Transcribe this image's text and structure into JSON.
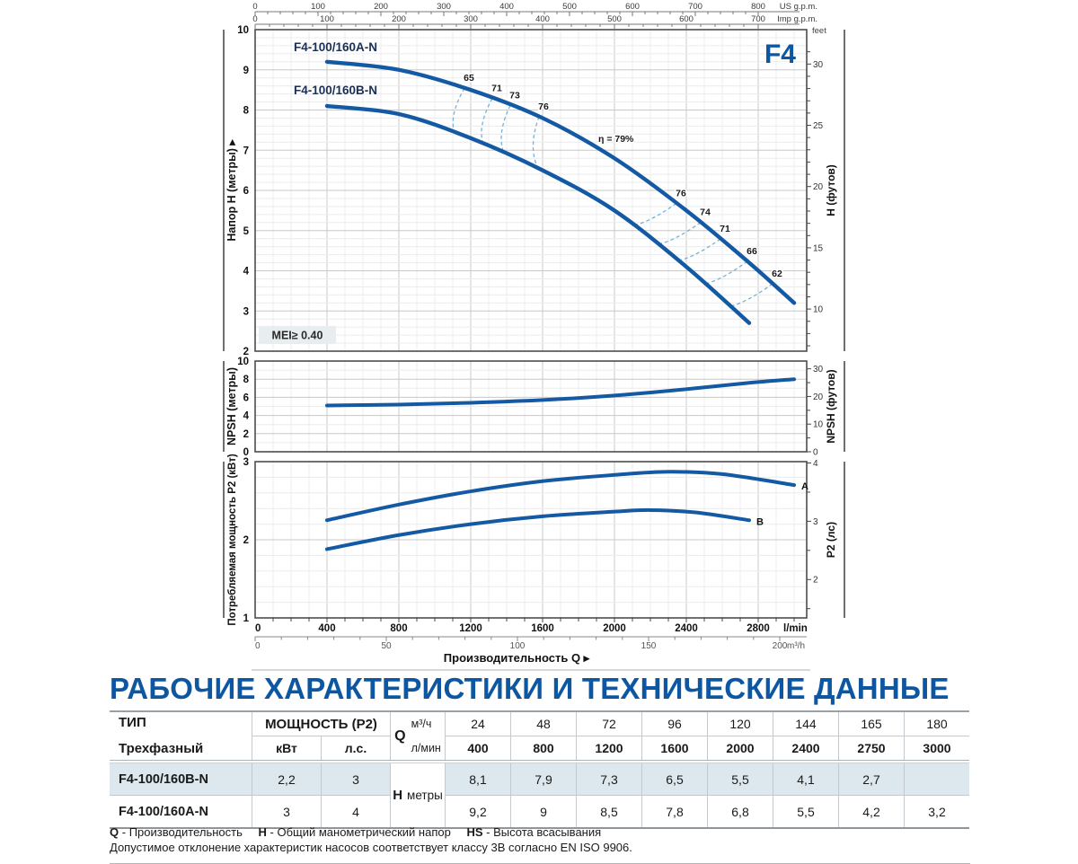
{
  "figure": {
    "brand": "F4",
    "mei": "MEI≥ 0.40",
    "x_title": "Производительность Q ▸",
    "curve_color": "#1459a3",
    "accent_blue": "#0d57a2",
    "iso_color": "#74b2d9"
  },
  "rulers": {
    "us": {
      "label": "US g.p.m.",
      "ticks": [
        0,
        100,
        200,
        300,
        400,
        500,
        600,
        700,
        800
      ]
    },
    "imp": {
      "label": "Imp g.p.m.",
      "ticks": [
        0,
        100,
        200,
        300,
        400,
        500,
        600,
        700
      ]
    },
    "feet_caption": "feet",
    "lmin": {
      "label": "l/min",
      "ticks": [
        0,
        400,
        800,
        1200,
        1600,
        2000,
        2400,
        2800
      ]
    },
    "m3h": {
      "label": "m³/h",
      "ticks": [
        0,
        50,
        100,
        150,
        200
      ]
    }
  },
  "chart_data": [
    {
      "type": "line",
      "name": "head-flow",
      "ylabel_left": "Напор H (метры) ▸",
      "ylabel_right": "H (футов)",
      "ylim": [
        2,
        10
      ],
      "xlim_lmin": [
        0,
        3070
      ],
      "yticks_left": [
        2,
        3,
        4,
        5,
        6,
        7,
        8,
        9,
        10
      ],
      "yticks_right_ft": [
        10,
        15,
        20,
        25,
        30
      ],
      "series": [
        {
          "name": "F4-100/160A-N",
          "points": [
            [
              400,
              9.2
            ],
            [
              800,
              9.0
            ],
            [
              1200,
              8.5
            ],
            [
              1600,
              7.8
            ],
            [
              2000,
              6.8
            ],
            [
              2400,
              5.5
            ],
            [
              2750,
              4.2
            ],
            [
              3000,
              3.2
            ]
          ]
        },
        {
          "name": "F4-100/160B-N",
          "points": [
            [
              400,
              8.1
            ],
            [
              800,
              7.9
            ],
            [
              1200,
              7.3
            ],
            [
              1600,
              6.5
            ],
            [
              2000,
              5.5
            ],
            [
              2400,
              4.1
            ],
            [
              2750,
              2.7
            ]
          ]
        }
      ],
      "efficiency": {
        "bep_label": "η = 79%",
        "bep_q": 1880,
        "points": [
          {
            "label": "65",
            "qa": 1165,
            "qb": 1110
          },
          {
            "label": "71",
            "qa": 1320,
            "qb": 1270
          },
          {
            "label": "73",
            "qa": 1420,
            "qb": 1385
          },
          {
            "label": "76",
            "qa": 1580,
            "qb": 1575
          },
          {
            "label": "76",
            "qa": 2345,
            "qb": 2105
          },
          {
            "label": "74",
            "qa": 2480,
            "qb": 2240
          },
          {
            "label": "71",
            "qa": 2590,
            "qb": 2355
          },
          {
            "label": "66",
            "qa": 2740,
            "qb": 2505
          },
          {
            "label": "62",
            "qa": 2880,
            "qb": 2645
          }
        ]
      }
    },
    {
      "type": "line",
      "name": "npsh",
      "ylabel_left": "NPSH (метры)",
      "ylabel_right": "NPSH (футов)",
      "ylim": [
        0,
        10
      ],
      "yticks_left": [
        0,
        2,
        4,
        6,
        8,
        10
      ],
      "yticks_right_ft": [
        0,
        10,
        20,
        30
      ],
      "series": [
        {
          "name": "NPSH",
          "points": [
            [
              400,
              5.1
            ],
            [
              800,
              5.2
            ],
            [
              1200,
              5.4
            ],
            [
              1600,
              5.7
            ],
            [
              2000,
              6.2
            ],
            [
              2400,
              6.9
            ],
            [
              2750,
              7.6
            ],
            [
              3000,
              8.0
            ]
          ]
        }
      ]
    },
    {
      "type": "line",
      "name": "p2-power",
      "ylabel_left": "Потребляемая мощность P2 (кВт)",
      "ylabel_right": "P2 (лс)",
      "ylim": [
        1,
        3
      ],
      "yticks_left": [
        1,
        2,
        3
      ],
      "yticks_right_hp": [
        2,
        3,
        4
      ],
      "series": [
        {
          "name": "A",
          "points": [
            [
              400,
              2.25
            ],
            [
              800,
              2.45
            ],
            [
              1200,
              2.62
            ],
            [
              1600,
              2.75
            ],
            [
              2000,
              2.83
            ],
            [
              2300,
              2.87
            ],
            [
              2600,
              2.84
            ],
            [
              3000,
              2.7
            ]
          ]
        },
        {
          "name": "B",
          "points": [
            [
              400,
              1.88
            ],
            [
              800,
              2.06
            ],
            [
              1200,
              2.2
            ],
            [
              1600,
              2.3
            ],
            [
              2000,
              2.36
            ],
            [
              2200,
              2.38
            ],
            [
              2450,
              2.35
            ],
            [
              2750,
              2.25
            ]
          ]
        }
      ]
    }
  ],
  "section_title": "РАБОЧИЕ ХАРАКТЕРИСТИКИ И ТЕХНИЧЕСКИЕ ДАННЫЕ",
  "table": {
    "col1_header": "ТИП",
    "col1_sub": "Трехфазный",
    "power_header": "МОЩНОСТЬ (P2)",
    "power_units": [
      "кВт",
      "л.с."
    ],
    "q_symbol": "Q",
    "q_units": [
      "м³/ч",
      "л/мин"
    ],
    "q_m3h": [
      "24",
      "48",
      "72",
      "96",
      "120",
      "144",
      "165",
      "180"
    ],
    "q_lmin": [
      "400",
      "800",
      "1200",
      "1600",
      "2000",
      "2400",
      "2750",
      "3000"
    ],
    "h_symbol": "H",
    "h_unit": "метры",
    "rows": [
      {
        "type": "F4-100/160B-N",
        "kw": "2,2",
        "hp": "3",
        "highlight": true,
        "h": [
          "8,1",
          "7,9",
          "7,3",
          "6,5",
          "5,5",
          "4,1",
          "2,7",
          ""
        ]
      },
      {
        "type": "F4-100/160A-N",
        "kw": "3",
        "hp": "4",
        "highlight": false,
        "h": [
          "9,2",
          "9",
          "8,5",
          "7,8",
          "6,8",
          "5,5",
          "4,2",
          "3,2"
        ]
      }
    ]
  },
  "legend": [
    {
      "abbr": "Q",
      "desc": "- Производительность"
    },
    {
      "abbr": "H",
      "desc": "- Общий манометрический напор"
    },
    {
      "abbr": "HS",
      "desc": "- Высота всасывания"
    }
  ],
  "note": "Допустимое отклонение характеристик насосов соответствует классу 3В согласно EN ISO 9906."
}
